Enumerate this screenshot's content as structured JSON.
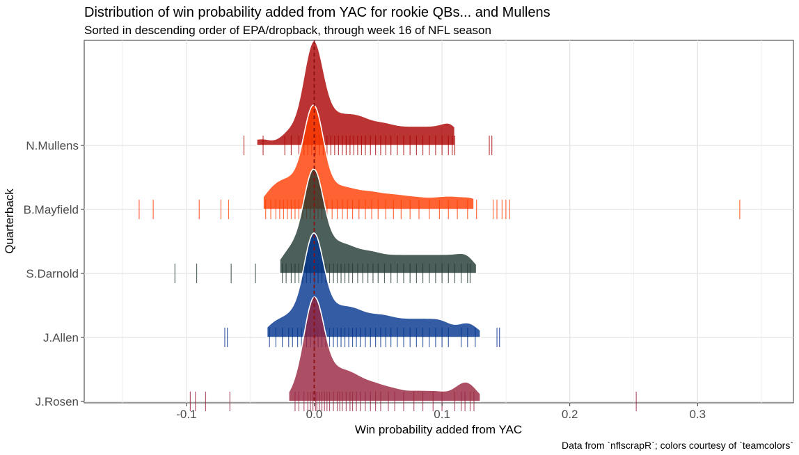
{
  "chart_data": {
    "type": "ridgeline-density",
    "title": "Distribution of win probability added from YAC for rookie QBs... and Mullens",
    "subtitle": "Sorted in descending order of EPA/dropback, through week 16 of NFL season",
    "xlabel": "Win probability added from YAC",
    "ylabel": "Quarterback",
    "caption": "Data from `nflscrapR`; colors courtesy of `teamcolors`",
    "xlim": [
      -0.18,
      0.375
    ],
    "x_ticks": [
      -0.1,
      0.0,
      0.1,
      0.2,
      0.3
    ],
    "x_tick_labels": [
      "-0.1",
      "0.0",
      "0.1",
      "0.2",
      "0.3"
    ],
    "reference_line_x": 0,
    "grid": true,
    "series": [
      {
        "name": "J.Rosen",
        "fill": "#97233F",
        "density_peak": 0.0,
        "density_range": [
          -0.02,
          0.13
        ],
        "rug_values": [
          -0.097,
          -0.093,
          -0.085,
          -0.066,
          -0.015,
          -0.012,
          -0.008,
          -0.005,
          -0.003,
          -0.001,
          0.001,
          0.002,
          0.004,
          0.006,
          0.008,
          0.01,
          0.012,
          0.015,
          0.018,
          0.02,
          0.022,
          0.025,
          0.028,
          0.03,
          0.033,
          0.036,
          0.04,
          0.044,
          0.048,
          0.052,
          0.058,
          0.063,
          0.07,
          0.078,
          0.085,
          0.093,
          0.1,
          0.11,
          0.115,
          0.118,
          0.122,
          0.125,
          0.252
        ]
      },
      {
        "name": "J.Allen",
        "fill": "#00338D",
        "density_peak": 0.0,
        "density_range": [
          -0.037,
          0.13
        ],
        "rug_values": [
          -0.07,
          -0.068,
          -0.035,
          -0.03,
          -0.025,
          -0.02,
          -0.017,
          -0.013,
          -0.01,
          -0.006,
          -0.003,
          0.0,
          0.003,
          0.006,
          0.009,
          0.012,
          0.015,
          0.018,
          0.021,
          0.024,
          0.027,
          0.03,
          0.033,
          0.036,
          0.04,
          0.044,
          0.048,
          0.052,
          0.056,
          0.06,
          0.065,
          0.07,
          0.075,
          0.08,
          0.085,
          0.09,
          0.095,
          0.1,
          0.105,
          0.115,
          0.12,
          0.126,
          0.143,
          0.145
        ]
      },
      {
        "name": "S.Darnold",
        "fill": "#203731",
        "density_peak": 0.0,
        "density_range": [
          -0.027,
          0.127
        ],
        "rug_values": [
          -0.109,
          -0.092,
          -0.065,
          -0.046,
          -0.025,
          -0.022,
          -0.018,
          -0.015,
          -0.012,
          -0.009,
          -0.006,
          -0.003,
          0.0,
          0.003,
          0.006,
          0.009,
          0.012,
          0.015,
          0.018,
          0.021,
          0.024,
          0.027,
          0.03,
          0.034,
          0.038,
          0.042,
          0.046,
          0.05,
          0.055,
          0.06,
          0.065,
          0.07,
          0.075,
          0.08,
          0.085,
          0.09,
          0.095,
          0.1,
          0.105,
          0.11,
          0.115,
          0.12,
          0.122
        ]
      },
      {
        "name": "B.Mayfield",
        "fill": "#FF3C00",
        "density_peak": 0.0,
        "density_range": [
          -0.04,
          0.125
        ],
        "rug_values": [
          -0.137,
          -0.126,
          -0.09,
          -0.073,
          -0.067,
          -0.038,
          -0.034,
          -0.03,
          -0.027,
          -0.024,
          -0.021,
          -0.018,
          -0.015,
          -0.012,
          -0.009,
          -0.006,
          -0.003,
          0.0,
          0.003,
          0.006,
          0.01,
          0.014,
          0.018,
          0.022,
          0.026,
          0.03,
          0.035,
          0.04,
          0.045,
          0.05,
          0.056,
          0.062,
          0.068,
          0.075,
          0.082,
          0.09,
          0.098,
          0.105,
          0.112,
          0.12,
          0.127,
          0.14,
          0.143,
          0.147,
          0.15,
          0.153,
          0.333
        ]
      },
      {
        "name": "N.Mullens",
        "fill": "#AA0000",
        "density_peak": 0.0,
        "density_range": [
          -0.045,
          0.11
        ],
        "rug_values": [
          -0.055,
          -0.04,
          -0.023,
          -0.018,
          -0.012,
          -0.008,
          -0.005,
          -0.002,
          0.001,
          0.004,
          0.007,
          0.01,
          0.013,
          0.016,
          0.019,
          0.022,
          0.025,
          0.028,
          0.031,
          0.034,
          0.037,
          0.04,
          0.044,
          0.048,
          0.052,
          0.056,
          0.06,
          0.065,
          0.07,
          0.075,
          0.08,
          0.085,
          0.09,
          0.095,
          0.1,
          0.105,
          0.108,
          0.11,
          0.137,
          0.139
        ]
      }
    ]
  }
}
